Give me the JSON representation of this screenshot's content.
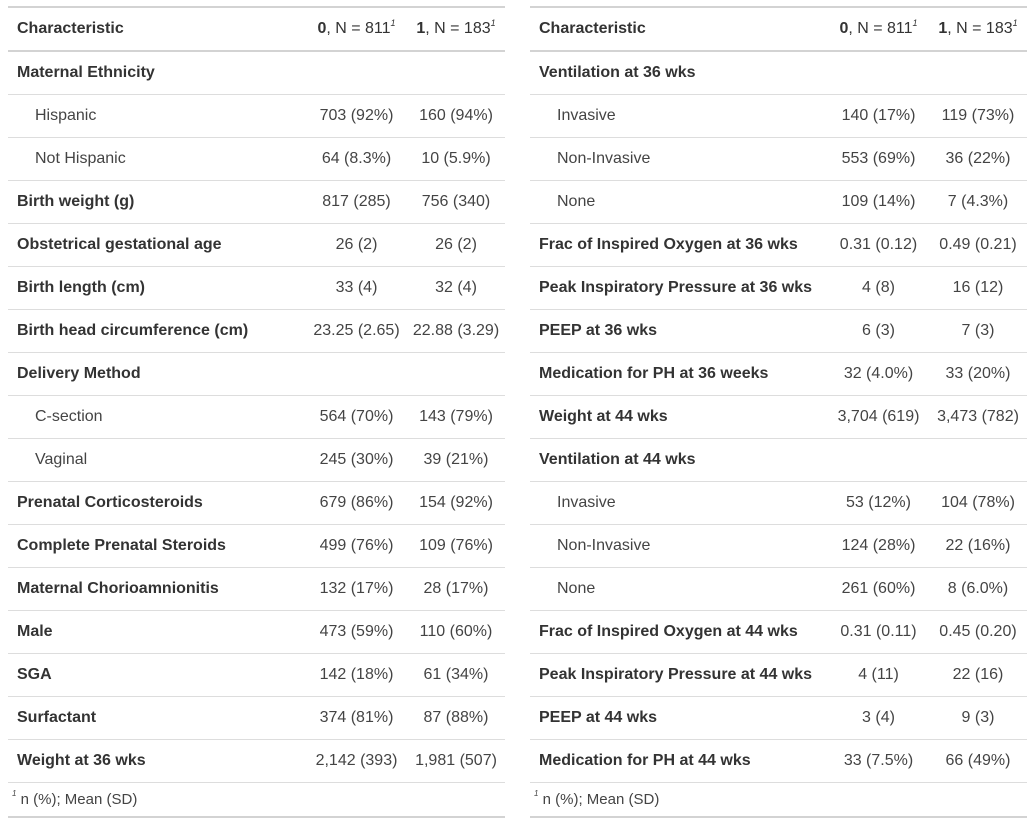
{
  "header": {
    "characteristic": "Characteristic",
    "group0_label": "0",
    "group0_n": ", N = 811",
    "group1_label": "1",
    "group1_n": ", N = 183",
    "footnote_mark": "1"
  },
  "footnote": {
    "mark": "1",
    "text": "n (%); Mean (SD)"
  },
  "left_table": {
    "rows": [
      {
        "label": "Maternal Ethnicity",
        "v0": "",
        "v1": "",
        "style": "bold"
      },
      {
        "label": "Hispanic",
        "v0": "703 (92%)",
        "v1": "160 (94%)",
        "style": "indent"
      },
      {
        "label": "Not Hispanic",
        "v0": "64 (8.3%)",
        "v1": "10 (5.9%)",
        "style": "indent"
      },
      {
        "label": "Birth weight (g)",
        "v0": "817 (285)",
        "v1": "756 (340)",
        "style": "bold"
      },
      {
        "label": "Obstetrical gestational age",
        "v0": "26 (2)",
        "v1": "26 (2)",
        "style": "bold"
      },
      {
        "label": "Birth length (cm)",
        "v0": "33 (4)",
        "v1": "32 (4)",
        "style": "bold"
      },
      {
        "label": "Birth head circumference (cm)",
        "v0": "23.25 (2.65)",
        "v1": "22.88 (3.29)",
        "style": "bold"
      },
      {
        "label": "Delivery Method",
        "v0": "",
        "v1": "",
        "style": "bold"
      },
      {
        "label": "C-section",
        "v0": "564 (70%)",
        "v1": "143 (79%)",
        "style": "indent"
      },
      {
        "label": "Vaginal",
        "v0": "245 (30%)",
        "v1": "39 (21%)",
        "style": "indent"
      },
      {
        "label": "Prenatal Corticosteroids",
        "v0": "679 (86%)",
        "v1": "154 (92%)",
        "style": "bold"
      },
      {
        "label": "Complete Prenatal Steroids",
        "v0": "499 (76%)",
        "v1": "109 (76%)",
        "style": "bold"
      },
      {
        "label": "Maternal Chorioamnionitis",
        "v0": "132 (17%)",
        "v1": "28 (17%)",
        "style": "bold"
      },
      {
        "label": "Male",
        "v0": "473 (59%)",
        "v1": "110 (60%)",
        "style": "bold"
      },
      {
        "label": "SGA",
        "v0": "142 (18%)",
        "v1": "61 (34%)",
        "style": "bold"
      },
      {
        "label": "Surfactant",
        "v0": "374 (81%)",
        "v1": "87 (88%)",
        "style": "bold"
      },
      {
        "label": "Weight at 36 wks",
        "v0": "2,142 (393)",
        "v1": "1,981 (507)",
        "style": "bold"
      }
    ]
  },
  "right_table": {
    "rows": [
      {
        "label": "Ventilation at 36 wks",
        "v0": "",
        "v1": "",
        "style": "bold"
      },
      {
        "label": "Invasive",
        "v0": "140 (17%)",
        "v1": "119 (73%)",
        "style": "indent"
      },
      {
        "label": "Non-Invasive",
        "v0": "553 (69%)",
        "v1": "36 (22%)",
        "style": "indent"
      },
      {
        "label": "None",
        "v0": "109 (14%)",
        "v1": "7 (4.3%)",
        "style": "indent"
      },
      {
        "label": "Frac of Inspired Oxygen at 36 wks",
        "v0": "0.31 (0.12)",
        "v1": "0.49 (0.21)",
        "style": "bold"
      },
      {
        "label": "Peak Inspiratory Pressure at 36 wks",
        "v0": "4 (8)",
        "v1": "16 (12)",
        "style": "bold"
      },
      {
        "label": "PEEP at 36 wks",
        "v0": "6 (3)",
        "v1": "7 (3)",
        "style": "bold"
      },
      {
        "label": "Medication for PH at 36 weeks",
        "v0": "32 (4.0%)",
        "v1": "33 (20%)",
        "style": "bold"
      },
      {
        "label": "Weight at 44 wks",
        "v0": "3,704 (619)",
        "v1": "3,473 (782)",
        "style": "bold"
      },
      {
        "label": "Ventilation at 44 wks",
        "v0": "",
        "v1": "",
        "style": "bold"
      },
      {
        "label": "Invasive",
        "v0": "53 (12%)",
        "v1": "104 (78%)",
        "style": "indent"
      },
      {
        "label": "Non-Invasive",
        "v0": "124 (28%)",
        "v1": "22 (16%)",
        "style": "indent"
      },
      {
        "label": "None",
        "v0": "261 (60%)",
        "v1": "8 (6.0%)",
        "style": "indent"
      },
      {
        "label": "Frac of Inspired Oxygen at 44 wks",
        "v0": "0.31 (0.11)",
        "v1": "0.45 (0.20)",
        "style": "bold"
      },
      {
        "label": "Peak Inspiratory Pressure at 44 wks",
        "v0": "4 (11)",
        "v1": "22 (16)",
        "style": "bold"
      },
      {
        "label": "PEEP at 44 wks",
        "v0": "3 (4)",
        "v1": "9 (3)",
        "style": "bold"
      },
      {
        "label": "Medication for PH at 44 wks",
        "v0": "33 (7.5%)",
        "v1": "66 (49%)",
        "style": "bold"
      }
    ]
  }
}
